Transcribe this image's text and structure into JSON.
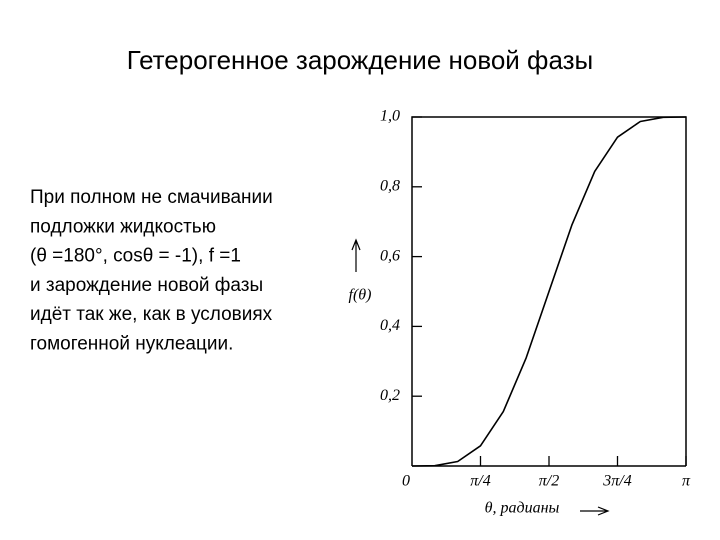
{
  "slide": {
    "title": "Гетерогенное зарождение новой фазы",
    "text": [
      "При полном не смачивании",
      "подложки жидкостью",
      "(θ =180°, cosθ = -1), f =1",
      " и зарождение новой фазы",
      "идёт так же, как в условиях",
      "гомогенной нуклеации."
    ]
  },
  "chart_data": {
    "type": "line",
    "x_label": "θ, радианы",
    "y_label": "f(θ)",
    "x": [
      0,
      0.2618,
      0.5236,
      0.7854,
      1.0472,
      1.309,
      1.5708,
      1.8326,
      2.0944,
      2.3562,
      2.618,
      2.8798,
      3.1416
    ],
    "values": [
      0,
      0.001,
      0.013,
      0.058,
      0.156,
      0.31,
      0.5,
      0.69,
      0.844,
      0.942,
      0.987,
      0.999,
      1
    ],
    "color": "#000000",
    "xlim": [
      0,
      3.1416
    ],
    "ylim": [
      0,
      1
    ],
    "xticks": [
      0,
      {
        "value": 0.7854,
        "label": "π/4"
      },
      {
        "value": 1.5708,
        "label": "π/2"
      },
      {
        "value": 2.3562,
        "label": "3π/4"
      },
      {
        "value": 3.1416,
        "label": "π"
      }
    ],
    "yticks": [
      {
        "value": 0.2,
        "label": "0,2"
      },
      {
        "value": 0.4,
        "label": "0,4"
      },
      {
        "value": 0.6,
        "label": "0,6"
      },
      {
        "value": 0.8,
        "label": "0,8"
      },
      {
        "value": 1,
        "label": "1,0"
      }
    ],
    "grid": false
  }
}
